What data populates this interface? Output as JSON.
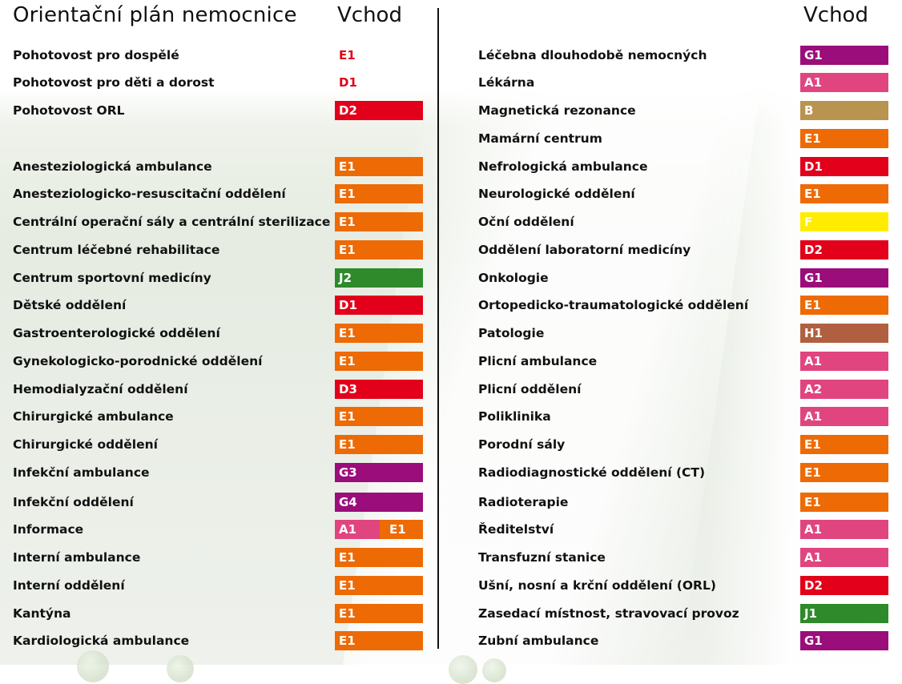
{
  "title": "Orientační plán nemocnice",
  "vchod_label": "Vchod",
  "colors": {
    "E1": "#ee6a05",
    "D1": "#e2001a",
    "D2": "#e2001a",
    "D3": "#e2001a",
    "J1": "#2e8a2a",
    "J2": "#2e8a2a",
    "G1": "#9b0d7a",
    "G3": "#9b0d7a",
    "G4": "#9b0d7a",
    "A1": "#e0457f",
    "A2": "#e0457f",
    "B": "#b89450",
    "F": "#ffec00",
    "H1": "#b06040"
  },
  "left": [
    {
      "label": "Pohotovost pro dospělé",
      "codes": [
        "E1"
      ],
      "plain": true
    },
    {
      "label": "Pohotovost pro děti a dorost",
      "codes": [
        "D1"
      ],
      "plain": true
    },
    {
      "label": "Pohotovost ORL",
      "codes": [
        "D2"
      ]
    },
    {
      "label": "Anesteziologická ambulance",
      "codes": [
        "E1"
      ]
    },
    {
      "label": "Anesteziologicko-resuscitační oddělení",
      "codes": [
        "E1"
      ]
    },
    {
      "label": "Centrální operační sály a centrální sterilizace",
      "codes": [
        "E1"
      ]
    },
    {
      "label": "Centrum léčebné rehabilitace",
      "codes": [
        "E1"
      ]
    },
    {
      "label": "Centrum sportovní medicíny",
      "codes": [
        "J2"
      ]
    },
    {
      "label": "Dětské oddělení",
      "codes": [
        "D1"
      ]
    },
    {
      "label": "Gastroenterologické oddělení",
      "codes": [
        "E1"
      ]
    },
    {
      "label": "Gynekologicko-porodnické oddělení",
      "codes": [
        "E1"
      ]
    },
    {
      "label": "Hemodialyzační oddělení",
      "codes": [
        "D3"
      ]
    },
    {
      "label": "Chirurgické ambulance",
      "codes": [
        "E1"
      ]
    },
    {
      "label": "Chirurgické oddělení",
      "codes": [
        "E1"
      ]
    },
    {
      "label": "Infekční ambulance",
      "codes": [
        "G3"
      ]
    },
    {
      "label": "Infekční oddělení",
      "codes": [
        "G4"
      ]
    },
    {
      "label": "Informace",
      "codes": [
        "A1",
        "E1"
      ]
    },
    {
      "label": "Interní ambulance",
      "codes": [
        "E1"
      ]
    },
    {
      "label": "Interní oddělení",
      "codes": [
        "E1"
      ]
    },
    {
      "label": "Kantýna",
      "codes": [
        "E1"
      ]
    },
    {
      "label": "Kardiologická ambulance",
      "codes": [
        "E1"
      ]
    }
  ],
  "right": [
    {
      "label": "Léčebna dlouhodobě nemocných",
      "codes": [
        "G1"
      ]
    },
    {
      "label": "Lékárna",
      "codes": [
        "A1"
      ]
    },
    {
      "label": "Magnetická rezonance",
      "codes": [
        "B"
      ]
    },
    {
      "label": "Mamární centrum",
      "codes": [
        "E1"
      ]
    },
    {
      "label": "Nefrologická ambulance",
      "codes": [
        "D1"
      ]
    },
    {
      "label": "Neurologické oddělení",
      "codes": [
        "E1"
      ]
    },
    {
      "label": "Oční oddělení",
      "codes": [
        "F"
      ]
    },
    {
      "label": "Oddělení laboratorní medicíny",
      "codes": [
        "D2"
      ]
    },
    {
      "label": "Onkologie",
      "codes": [
        "G1"
      ]
    },
    {
      "label": "Ortopedicko-traumatologické oddělení",
      "codes": [
        "E1"
      ]
    },
    {
      "label": "Patologie",
      "codes": [
        "H1"
      ]
    },
    {
      "label": "Plicní ambulance",
      "codes": [
        "A1"
      ]
    },
    {
      "label": "Plicní oddělení",
      "codes": [
        "A2"
      ]
    },
    {
      "label": "Poliklinika",
      "codes": [
        "A1"
      ]
    },
    {
      "label": "Porodní sály",
      "codes": [
        "E1"
      ]
    },
    {
      "label": "Radiodiagnostické oddělení (CT)",
      "codes": [
        "E1"
      ]
    },
    {
      "label": "Radioterapie",
      "codes": [
        "E1"
      ]
    },
    {
      "label": "Ředitelství",
      "codes": [
        "A1"
      ]
    },
    {
      "label": "Transfuzní stanice",
      "codes": [
        "A1"
      ]
    },
    {
      "label": "Ušní, nosní a krční oddělení (ORL)",
      "codes": [
        "D2"
      ]
    },
    {
      "label": "Zasedací místnost, stravovací provoz",
      "codes": [
        "J1"
      ]
    },
    {
      "label": "Zubní ambulance",
      "codes": [
        "G1"
      ]
    }
  ]
}
